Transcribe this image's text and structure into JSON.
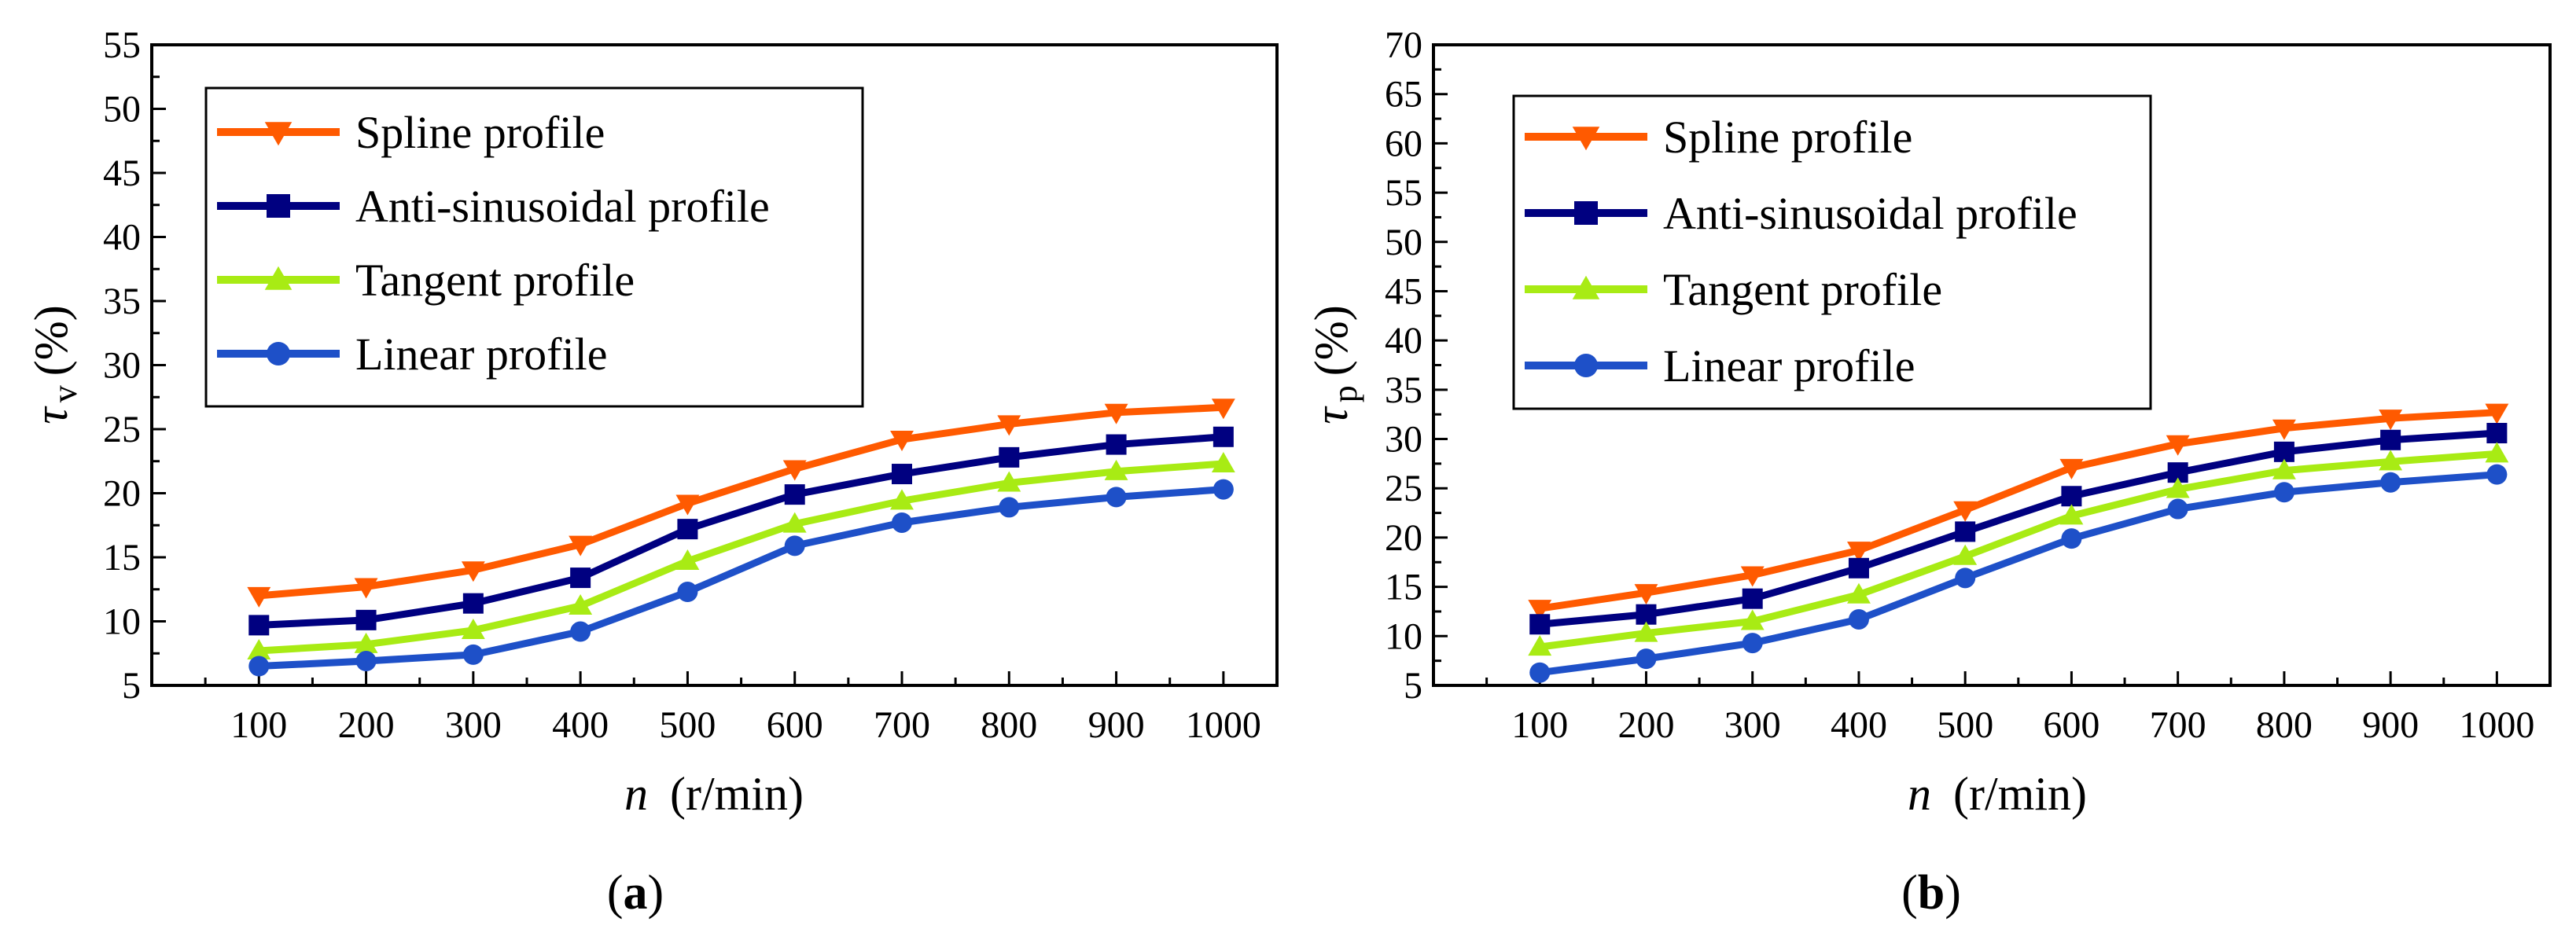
{
  "chart_data": [
    {
      "type": "line",
      "panel_label": "a",
      "xlabel_italic": "n",
      "xlabel_units": "(r/min)",
      "ylabel_symbol": "τ",
      "ylabel_sub": "v",
      "ylabel_units": "(%)",
      "x": [
        100,
        200,
        300,
        400,
        500,
        600,
        700,
        800,
        900,
        1000
      ],
      "xlim": [
        0,
        1050
      ],
      "ylim": [
        5,
        55
      ],
      "yticks": [
        5,
        10,
        15,
        20,
        25,
        30,
        35,
        40,
        45,
        50,
        55
      ],
      "legend_position": "top-left",
      "series": [
        {
          "name": "Spline profile",
          "color": "#FF5A00",
          "marker": "triangle-down",
          "values": [
            12.0,
            12.7,
            14.0,
            16.0,
            19.2,
            21.9,
            24.2,
            25.4,
            26.3,
            26.7
          ]
        },
        {
          "name": "Anti-sinusoidal profile",
          "color": "#000080",
          "marker": "square",
          "values": [
            9.7,
            10.1,
            11.4,
            13.4,
            17.2,
            19.9,
            21.5,
            22.8,
            23.8,
            24.4
          ]
        },
        {
          "name": "Tangent profile",
          "color": "#A8EB14",
          "marker": "triangle-up",
          "values": [
            7.7,
            8.2,
            9.3,
            11.2,
            14.7,
            17.6,
            19.4,
            20.8,
            21.7,
            22.3
          ]
        },
        {
          "name": "Linear profile",
          "color": "#1E50C8",
          "marker": "circle",
          "values": [
            6.5,
            6.9,
            7.4,
            9.2,
            12.3,
            15.9,
            17.7,
            18.9,
            19.7,
            20.3
          ]
        }
      ]
    },
    {
      "type": "line",
      "panel_label": "b",
      "xlabel_italic": "n",
      "xlabel_units": "(r/min)",
      "ylabel_symbol": "τ",
      "ylabel_sub": "p",
      "ylabel_units": "(%)",
      "x": [
        100,
        200,
        300,
        400,
        500,
        600,
        700,
        800,
        900,
        1000
      ],
      "xlim": [
        0,
        1050
      ],
      "ylim": [
        5,
        70
      ],
      "yticks": [
        5,
        10,
        15,
        20,
        25,
        30,
        35,
        40,
        45,
        50,
        55,
        60,
        65,
        70
      ],
      "legend_position": "top-left",
      "series": [
        {
          "name": "Spline profile",
          "color": "#FF5A00",
          "marker": "triangle-down",
          "values": [
            12.8,
            14.4,
            16.2,
            18.7,
            22.8,
            27.1,
            29.5,
            31.1,
            32.1,
            32.7
          ]
        },
        {
          "name": "Anti-sinusoidal profile",
          "color": "#000080",
          "marker": "square",
          "values": [
            11.2,
            12.2,
            13.8,
            16.9,
            20.6,
            24.2,
            26.6,
            28.7,
            29.9,
            30.6
          ]
        },
        {
          "name": "Tangent profile",
          "color": "#A8EB14",
          "marker": "triangle-up",
          "values": [
            8.9,
            10.3,
            11.5,
            14.2,
            18.1,
            22.2,
            24.9,
            26.8,
            27.7,
            28.5
          ]
        },
        {
          "name": "Linear profile",
          "color": "#1E50C8",
          "marker": "circle",
          "values": [
            6.3,
            7.7,
            9.3,
            11.7,
            15.9,
            19.9,
            22.9,
            24.6,
            25.6,
            26.4
          ]
        }
      ]
    }
  ]
}
